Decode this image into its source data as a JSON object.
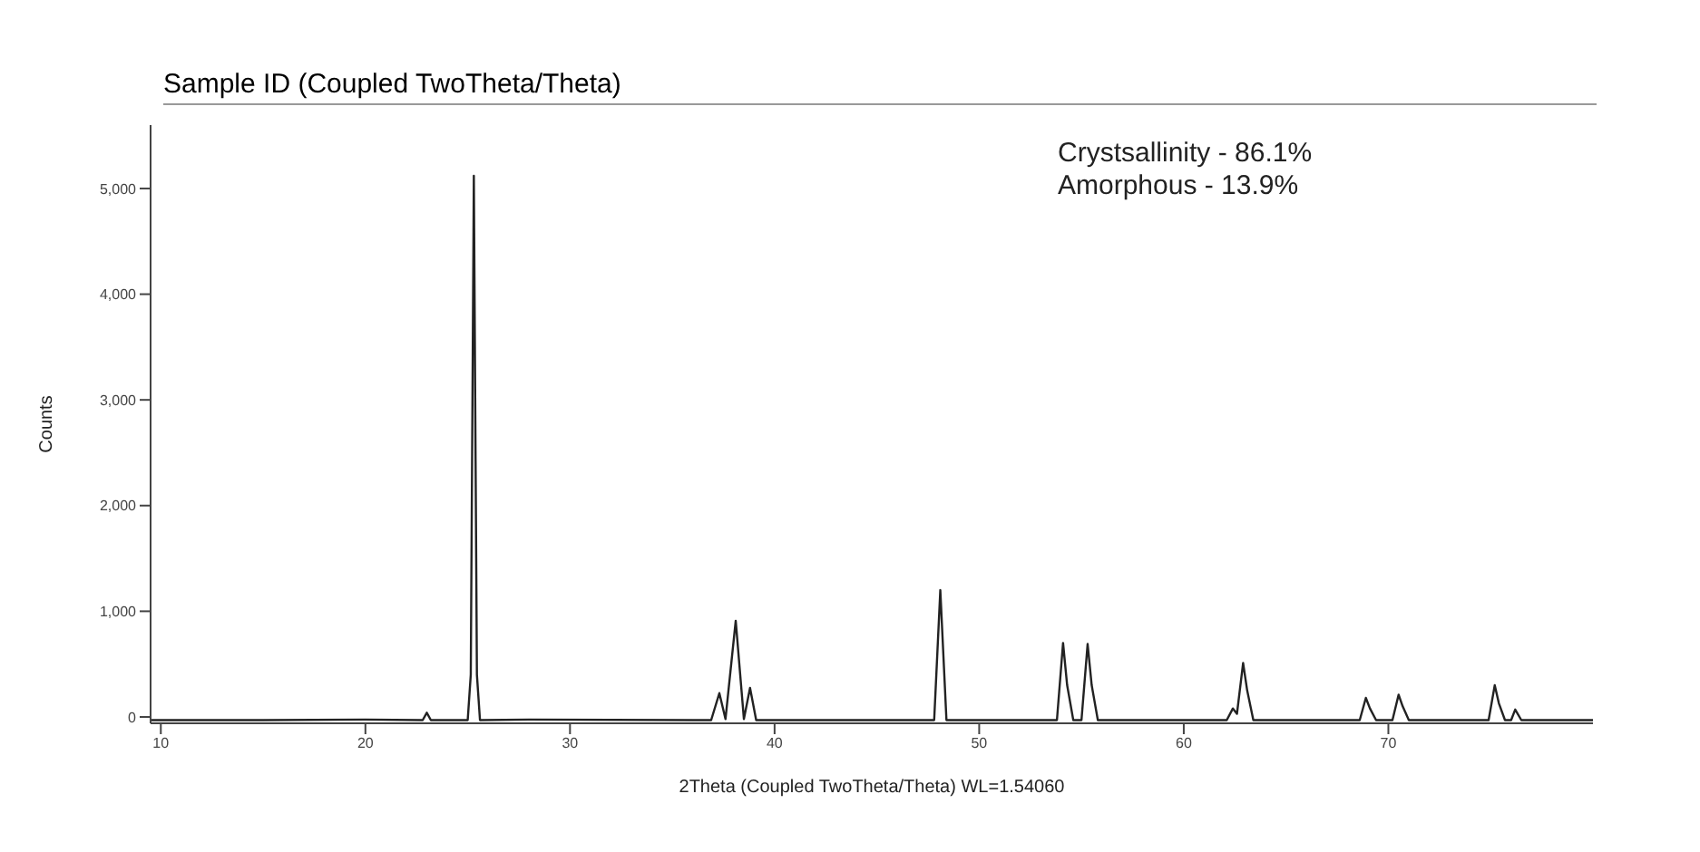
{
  "chart_data": {
    "type": "line",
    "title": "Sample ID (Coupled TwoTheta/Theta)",
    "xlabel": "2Theta (Coupled TwoTheta/Theta) WL=1.54060",
    "ylabel": "Counts",
    "annotations": [
      "Crystsallinity - 86.1%",
      "Amorphous - 13.9%"
    ],
    "x": [
      9.5,
      15,
      20,
      22.8,
      23.0,
      23.2,
      25.0,
      25.15,
      25.3,
      25.45,
      25.6,
      28,
      36.9,
      37.3,
      37.6,
      38.1,
      38.5,
      38.8,
      39.1,
      47.8,
      48.1,
      48.4,
      53.8,
      54.1,
      54.3,
      54.6,
      55.0,
      55.3,
      55.5,
      55.8,
      62.1,
      62.4,
      62.6,
      62.9,
      63.1,
      63.4,
      68.6,
      68.9,
      69.1,
      69.4,
      70.2,
      70.5,
      70.7,
      71.0,
      74.9,
      75.2,
      75.4,
      75.7,
      76.0,
      76.2,
      76.5,
      80
    ],
    "series": [
      {
        "color": "#222222",
        "values": [
          -30,
          -30,
          -25,
          -30,
          40,
          -30,
          -30,
          400,
          5120,
          400,
          -30,
          -25,
          -30,
          225,
          -20,
          910,
          -20,
          275,
          -30,
          -30,
          1200,
          -30,
          -30,
          700,
          300,
          -30,
          -30,
          690,
          300,
          -30,
          -30,
          80,
          30,
          510,
          250,
          -30,
          -30,
          180,
          80,
          -30,
          -30,
          210,
          100,
          -30,
          -30,
          300,
          130,
          -30,
          -30,
          70,
          -30,
          -30
        ]
      }
    ],
    "xlim": [
      9.5,
      80
    ],
    "xticks": [
      10,
      20,
      30,
      40,
      50,
      60,
      70
    ],
    "ylim": [
      -60,
      5600
    ],
    "yticks": [
      0,
      {
        "value": 1000,
        "label": "1,000"
      },
      {
        "value": 2000,
        "label": "2,000"
      },
      {
        "value": 3000,
        "label": "3,000"
      },
      {
        "value": 4000,
        "label": "4,000"
      },
      {
        "value": 5000,
        "label": "5,000"
      }
    ],
    "grid": false,
    "legend": false,
    "marker": "none",
    "line_style": "solid"
  }
}
